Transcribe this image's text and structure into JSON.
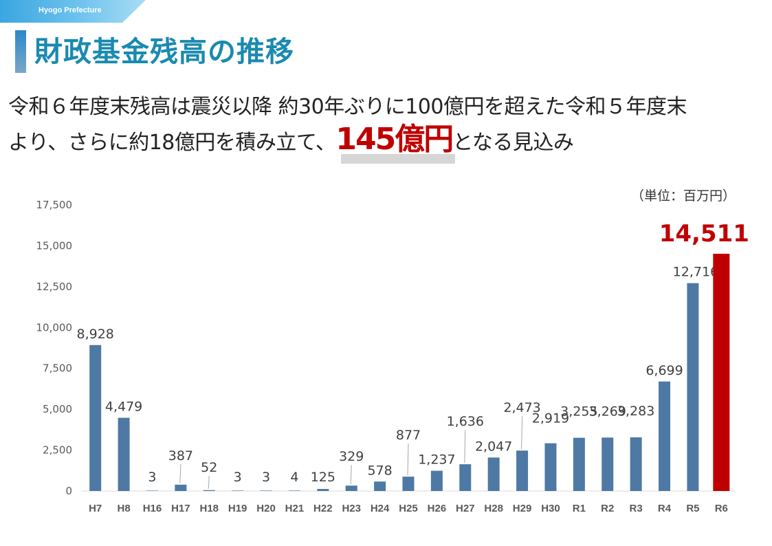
{
  "header": {
    "tag": "Hyogo Prefecture",
    "title": "財政基金残高の推移",
    "line1": "令和６年度末残高は震災以降 約30年ぶりに100億円を超えた令和５年度末",
    "line2_pre": "より、さらに約18億円を積み立て、",
    "line2_highlight": "145億円",
    "line2_post": "となる見込み"
  },
  "chart_data": {
    "type": "bar",
    "unit_label": "（単位：百万円）",
    "categories": [
      "H7",
      "H8",
      "H16",
      "H17",
      "H18",
      "H19",
      "H20",
      "H21",
      "H22",
      "H23",
      "H24",
      "H25",
      "H26",
      "H27",
      "H28",
      "H29",
      "H30",
      "R1",
      "R2",
      "R3",
      "R4",
      "R5",
      "R6"
    ],
    "values": [
      8928,
      4479,
      3,
      387,
      52,
      3,
      3,
      4,
      125,
      329,
      578,
      877,
      1237,
      1636,
      2047,
      2473,
      2919,
      3255,
      3269,
      3283,
      6699,
      12716,
      14511
    ],
    "value_labels": [
      "8,928",
      "4,479",
      "3",
      "387",
      "52",
      "3",
      "3",
      "4",
      "125",
      "329",
      "578",
      "877",
      "1,237",
      "1,636",
      "2,047",
      "2,473",
      "2,919",
      "3,255",
      "3,269",
      "3,283",
      "6,699",
      "12,716",
      "14,511"
    ],
    "ylim": [
      0,
      17500
    ],
    "yticks": [
      "0",
      "2,500",
      "5,000",
      "7,500",
      "10,000",
      "12,500",
      "15,000",
      "17,500"
    ],
    "colors": {
      "bar": "#4e79a4",
      "highlight": "#c00000",
      "axis_text": "#595959"
    },
    "highlight_index": 22
  }
}
